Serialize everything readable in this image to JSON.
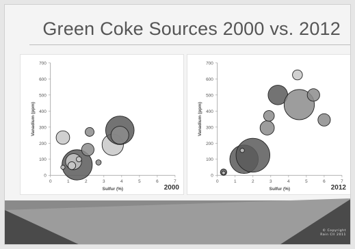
{
  "slide": {
    "title": "Green Coke Sources 2000 vs. 2012",
    "copyright": "© Copyright",
    "copyright_line2": "Rain CII 2011"
  },
  "colors": {
    "background": "#f4f4f4",
    "bubble_dark": "#5a5a5a",
    "bubble_mid": "#8c8c8c",
    "bubble_light": "#c8c8c8",
    "footer_dark": "#4a4a4a",
    "footer_mid": "#8a8a8a"
  },
  "chart_data": [
    {
      "type": "scatter",
      "subtype": "bubble",
      "label": "2000",
      "xlabel": "Sulfur (%)",
      "ylabel": "Vanadium (ppm)",
      "xlim": [
        0,
        7
      ],
      "ylim": [
        0,
        700
      ],
      "xticks": [
        "0",
        "1",
        "2",
        "3",
        "4",
        "5",
        "6",
        "7"
      ],
      "yticks": [
        "0",
        "100",
        "200",
        "300",
        "400",
        "500",
        "600",
        "700"
      ],
      "grid": false,
      "points": [
        {
          "x": 0.7,
          "y": 235,
          "r": 0.38,
          "shade": "light"
        },
        {
          "x": 1.5,
          "y": 65,
          "r": 0.85,
          "shade": "dark"
        },
        {
          "x": 1.3,
          "y": 85,
          "r": 0.45,
          "shade": "light"
        },
        {
          "x": 1.2,
          "y": 60,
          "r": 0.22,
          "shade": "light"
        },
        {
          "x": 0.7,
          "y": 50,
          "r": 0.12,
          "shade": "light"
        },
        {
          "x": 1.6,
          "y": 100,
          "r": 0.15,
          "shade": "light"
        },
        {
          "x": 2.1,
          "y": 160,
          "r": 0.35,
          "shade": "mid"
        },
        {
          "x": 2.2,
          "y": 270,
          "r": 0.25,
          "shade": "mid"
        },
        {
          "x": 2.7,
          "y": 80,
          "r": 0.15,
          "shade": "mid"
        },
        {
          "x": 3.5,
          "y": 190,
          "r": 0.6,
          "shade": "light"
        },
        {
          "x": 3.9,
          "y": 280,
          "r": 0.8,
          "shade": "dark"
        },
        {
          "x": 3.9,
          "y": 250,
          "r": 0.5,
          "shade": "mid"
        }
      ]
    },
    {
      "type": "scatter",
      "subtype": "bubble",
      "label": "2012",
      "xlabel": "Sulfur (%)",
      "ylabel": "Vanadium (ppm)",
      "xlim": [
        0,
        7
      ],
      "ylim": [
        0,
        700
      ],
      "xticks": [
        "0",
        "1",
        "2",
        "3",
        "4",
        "5",
        "6",
        "7"
      ],
      "yticks": [
        "0",
        "100",
        "200",
        "300",
        "400",
        "500",
        "600",
        "700"
      ],
      "grid": false,
      "points": [
        {
          "x": 0.35,
          "y": 20,
          "r": 0.18,
          "shade": "dark"
        },
        {
          "x": 0.35,
          "y": 15,
          "r": 0.1,
          "shade": "light"
        },
        {
          "x": 1.5,
          "y": 100,
          "r": 0.8,
          "shade": "dark"
        },
        {
          "x": 2.0,
          "y": 125,
          "r": 0.95,
          "shade": "dark"
        },
        {
          "x": 1.4,
          "y": 155,
          "r": 0.12,
          "shade": "light"
        },
        {
          "x": 2.8,
          "y": 295,
          "r": 0.4,
          "shade": "mid"
        },
        {
          "x": 2.9,
          "y": 370,
          "r": 0.3,
          "shade": "mid"
        },
        {
          "x": 3.4,
          "y": 500,
          "r": 0.55,
          "shade": "dark"
        },
        {
          "x": 4.5,
          "y": 625,
          "r": 0.28,
          "shade": "light"
        },
        {
          "x": 4.6,
          "y": 440,
          "r": 0.85,
          "shade": "mid"
        },
        {
          "x": 5.4,
          "y": 500,
          "r": 0.35,
          "shade": "mid"
        },
        {
          "x": 6.0,
          "y": 345,
          "r": 0.35,
          "shade": "mid"
        }
      ]
    }
  ]
}
